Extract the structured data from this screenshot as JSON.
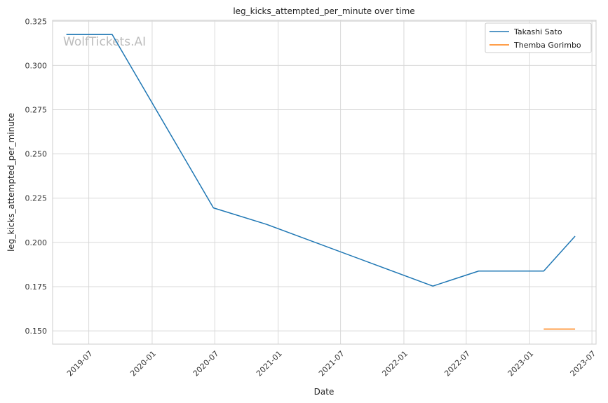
{
  "watermark": "WolfTickets.AI",
  "chart_data": {
    "type": "line",
    "title": "leg_kicks_attempted_per_minute over time",
    "xlabel": "Date",
    "ylabel": "leg_kicks_attempted_per_minute",
    "xlim": [
      "2019-03-18",
      "2023-07-13"
    ],
    "ylim": [
      0.1425,
      0.3255
    ],
    "x_ticks": [
      "2019-07",
      "2020-01",
      "2020-07",
      "2021-01",
      "2021-07",
      "2022-01",
      "2022-07",
      "2023-01",
      "2023-07"
    ],
    "y_ticks": [
      "0.150",
      "0.175",
      "0.200",
      "0.225",
      "0.250",
      "0.275",
      "0.300",
      "0.325"
    ],
    "grid": true,
    "legend_position": "top-right",
    "series": [
      {
        "name": "Takashi Sato",
        "color": "#1f77b4",
        "points": [
          {
            "x": "2019-04-27",
            "y": 0.3175
          },
          {
            "x": "2019-09-07",
            "y": 0.3175
          },
          {
            "x": "2020-06-27",
            "y": 0.2195
          },
          {
            "x": "2020-11-28",
            "y": 0.2102
          },
          {
            "x": "2022-03-26",
            "y": 0.1753
          },
          {
            "x": "2022-08-06",
            "y": 0.1838
          },
          {
            "x": "2023-02-11",
            "y": 0.1838
          },
          {
            "x": "2023-05-13",
            "y": 0.2035
          }
        ]
      },
      {
        "name": "Themba Gorimbo",
        "color": "#ff7f0e",
        "points": [
          {
            "x": "2023-02-11",
            "y": 0.151
          },
          {
            "x": "2023-05-13",
            "y": 0.151
          }
        ]
      }
    ]
  }
}
